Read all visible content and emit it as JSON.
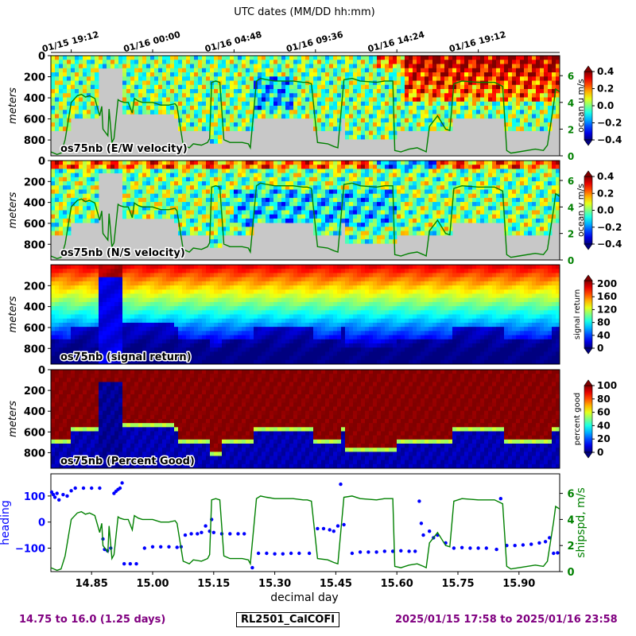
{
  "top_axis": {
    "label": "UTC dates (MM/DD hh:mm)",
    "ticks": [
      "01/15 19:12",
      "01/16 00:00",
      "01/16 04:48",
      "01/16 09:36",
      "01/16 14:24",
      "01/16 19:12"
    ],
    "tick_days": [
      14.8,
      15.0,
      15.2,
      15.4,
      15.6,
      15.8
    ]
  },
  "footer": {
    "left": "14.75 to 16.0 (1.25 days)",
    "center": "RL2501_CalCOFI",
    "right": "2025/01/15 17:58 to 2025/01/16 23:58"
  },
  "colors": {
    "purple": "#800080",
    "green": "#008000",
    "blue": "#0000ff",
    "gray_nodata": "#c8c8c8"
  },
  "chart_data": [
    {
      "type": "heatmap",
      "panel_label": "os75nb (E/W velocity)",
      "ylabel": "meters",
      "y_ticks": [
        0,
        200,
        400,
        600,
        800
      ],
      "ylim": [
        950,
        0
      ],
      "colorbar": {
        "label": "ocean u m/s",
        "ticks": [
          0.4,
          0.2,
          0.0,
          -0.2,
          -0.4
        ],
        "tick_labels": [
          "0.4",
          "0.2",
          "0.0",
          "−0.2",
          "−0.4"
        ],
        "range": [
          -0.4,
          0.4
        ],
        "colormap": "jet"
      },
      "right_axis": {
        "ticks": [
          "0",
          "2",
          "4",
          "6"
        ],
        "tick_values": [
          0,
          2,
          4,
          6
        ],
        "range": [
          0,
          7.5
        ]
      }
    },
    {
      "type": "heatmap",
      "panel_label": "os75nb (N/S velocity)",
      "ylabel": "meters",
      "y_ticks": [
        0,
        200,
        400,
        600,
        800
      ],
      "ylim": [
        950,
        0
      ],
      "colorbar": {
        "label": "ocean v m/s",
        "ticks": [
          0.4,
          0.2,
          0.0,
          -0.2,
          -0.4
        ],
        "tick_labels": [
          "0.4",
          "0.2",
          "0.0",
          "−0.2",
          "−0.4"
        ],
        "range": [
          -0.4,
          0.4
        ],
        "colormap": "jet"
      },
      "right_axis": {
        "ticks": [
          "0",
          "2",
          "4",
          "6"
        ],
        "tick_values": [
          0,
          2,
          4,
          6
        ],
        "range": [
          0,
          7.5
        ]
      }
    },
    {
      "type": "heatmap",
      "panel_label": "os75nb (signal return)",
      "ylabel": "meters",
      "y_ticks": [
        200,
        400,
        600,
        800
      ],
      "ylim": [
        950,
        0
      ],
      "colorbar": {
        "label": "signal return",
        "ticks": [
          200,
          160,
          120,
          80,
          40,
          0
        ],
        "tick_labels": [
          "200",
          "160",
          "120",
          "80",
          "40",
          "0"
        ],
        "range": [
          0,
          210
        ],
        "colormap": "jet"
      }
    },
    {
      "type": "heatmap",
      "panel_label": "os75nb (Percent Good)",
      "ylabel": "meters",
      "y_ticks": [
        0,
        200,
        400,
        600,
        800
      ],
      "ylim": [
        950,
        0
      ],
      "colorbar": {
        "label": "percent good",
        "ticks": [
          100,
          80,
          60,
          40,
          20,
          0
        ],
        "tick_labels": [
          "100",
          "80",
          "60",
          "40",
          "20",
          "0"
        ],
        "range": [
          0,
          100
        ],
        "colormap": "jet"
      }
    },
    {
      "type": "scatter",
      "xlabel": "decimal day",
      "ylabel": "heading",
      "ylabel_right": "shipspd, m/s",
      "x_ticks": [
        14.85,
        15.0,
        15.15,
        15.3,
        15.45,
        15.6,
        15.75,
        15.9
      ],
      "x_tick_labels": [
        "14.85",
        "15.00",
        "15.15",
        "15.30",
        "15.45",
        "15.60",
        "15.75",
        "15.90"
      ],
      "xlim": [
        14.75,
        16.0
      ],
      "y_ticks": [
        100,
        0,
        -100
      ],
      "y_tick_labels": [
        "100",
        "0",
        "−100"
      ],
      "ylim": [
        -190,
        185
      ],
      "right_ticks": [
        "0",
        "2",
        "4",
        "6"
      ],
      "right_tick_values": [
        0,
        2,
        4,
        6
      ],
      "right_ylim": [
        0,
        7.5
      ],
      "series": [
        {
          "color": "#0000ff",
          "points": [
            [
              14.752,
              115
            ],
            [
              14.756,
              105
            ],
            [
              14.76,
              95
            ],
            [
              14.765,
              110
            ],
            [
              14.77,
              85
            ],
            [
              14.78,
              105
            ],
            [
              14.79,
              100
            ],
            [
              14.8,
              120
            ],
            [
              14.81,
              130
            ],
            [
              14.83,
              130
            ],
            [
              14.85,
              130
            ],
            [
              14.87,
              130
            ],
            [
              14.878,
              -65
            ],
            [
              14.882,
              -105
            ],
            [
              14.889,
              -110
            ],
            [
              14.897,
              -100
            ],
            [
              14.905,
              110
            ],
            [
              14.91,
              118
            ],
            [
              14.915,
              125
            ],
            [
              14.92,
              130
            ],
            [
              14.925,
              150
            ],
            [
              14.93,
              -160
            ],
            [
              14.945,
              -160
            ],
            [
              14.96,
              -160
            ],
            [
              14.98,
              -100
            ],
            [
              15.0,
              -95
            ],
            [
              15.02,
              -95
            ],
            [
              15.04,
              -95
            ],
            [
              15.06,
              -97
            ],
            [
              15.07,
              -95
            ],
            [
              15.08,
              -50
            ],
            [
              15.095,
              -45
            ],
            [
              15.11,
              -45
            ],
            [
              15.12,
              -40
            ],
            [
              15.13,
              -15
            ],
            [
              15.14,
              -35
            ],
            [
              15.145,
              10
            ],
            [
              15.15,
              -40
            ],
            [
              15.17,
              -45
            ],
            [
              15.19,
              -45
            ],
            [
              15.21,
              -45
            ],
            [
              15.225,
              -45
            ],
            [
              15.245,
              -175
            ],
            [
              15.26,
              -120
            ],
            [
              15.28,
              -120
            ],
            [
              15.3,
              -122
            ],
            [
              15.32,
              -122
            ],
            [
              15.34,
              -120
            ],
            [
              15.36,
              -120
            ],
            [
              15.385,
              -120
            ],
            [
              15.405,
              -25
            ],
            [
              15.42,
              -25
            ],
            [
              15.435,
              -30
            ],
            [
              15.445,
              -35
            ],
            [
              15.455,
              -15
            ],
            [
              15.462,
              145
            ],
            [
              15.47,
              -10
            ],
            [
              15.49,
              -120
            ],
            [
              15.51,
              -115
            ],
            [
              15.53,
              -115
            ],
            [
              15.55,
              -115
            ],
            [
              15.57,
              -112
            ],
            [
              15.59,
              -112
            ],
            [
              15.61,
              -110
            ],
            [
              15.63,
              -112
            ],
            [
              15.645,
              -112
            ],
            [
              15.655,
              80
            ],
            [
              15.66,
              -5
            ],
            [
              15.665,
              -50
            ],
            [
              15.68,
              -35
            ],
            [
              15.69,
              -60
            ],
            [
              15.7,
              -50
            ],
            [
              15.72,
              -80
            ],
            [
              15.74,
              -100
            ],
            [
              15.76,
              -98
            ],
            [
              15.78,
              -100
            ],
            [
              15.8,
              -100
            ],
            [
              15.82,
              -100
            ],
            [
              15.845,
              -105
            ],
            [
              15.855,
              90
            ],
            [
              15.87,
              -90
            ],
            [
              15.89,
              -90
            ],
            [
              15.91,
              -88
            ],
            [
              15.93,
              -85
            ],
            [
              15.95,
              -80
            ],
            [
              15.965,
              -75
            ],
            [
              15.975,
              -60
            ],
            [
              15.985,
              -120
            ],
            [
              15.995,
              -118
            ]
          ]
        },
        {
          "color": "#008000",
          "name": "shipspd",
          "x": [
            14.75,
            14.765,
            14.775,
            14.785,
            14.8,
            14.815,
            14.825,
            14.835,
            14.845,
            14.858,
            14.87,
            14.875,
            14.878,
            14.89,
            14.893,
            14.9,
            14.905,
            14.915,
            14.92,
            14.93,
            14.94,
            14.95,
            14.955,
            14.965,
            14.975,
            14.98,
            15.0,
            15.02,
            15.04,
            15.055,
            15.06,
            15.075,
            15.09,
            15.1,
            15.12,
            15.135,
            15.14,
            15.145,
            15.155,
            15.165,
            15.175,
            15.19,
            15.2,
            15.22,
            15.235,
            15.24,
            15.255,
            15.265,
            15.28,
            15.3,
            15.32,
            15.345,
            15.37,
            15.38,
            15.39,
            15.405,
            15.43,
            15.445,
            15.455,
            15.47,
            15.49,
            15.51,
            15.55,
            15.57,
            15.59,
            15.595,
            15.61,
            15.63,
            15.65,
            15.665,
            15.672,
            15.68,
            15.7,
            15.72,
            15.73,
            15.74,
            15.76,
            15.8,
            15.84,
            15.86,
            15.87,
            15.88,
            15.9,
            15.94,
            15.96,
            15.97,
            15.985,
            15.99,
            16.0
          ],
          "values": [
            0.3,
            0.1,
            0.2,
            1.2,
            4.0,
            4.5,
            4.6,
            4.4,
            4.5,
            4.3,
            3.0,
            3.7,
            2.0,
            1.5,
            3.5,
            1.0,
            1.3,
            4.2,
            4.1,
            4.0,
            4.0,
            3.2,
            4.3,
            4.1,
            4.0,
            4.0,
            4.0,
            3.8,
            3.8,
            3.9,
            3.7,
            0.8,
            0.6,
            0.9,
            0.8,
            1.0,
            1.3,
            5.5,
            5.6,
            5.5,
            1.2,
            1.0,
            1.0,
            1.0,
            0.9,
            0.6,
            5.6,
            5.8,
            5.7,
            5.6,
            5.6,
            5.6,
            5.5,
            5.5,
            5.4,
            1.0,
            0.9,
            0.7,
            0.6,
            5.7,
            5.8,
            5.6,
            5.5,
            5.6,
            5.6,
            0.4,
            0.3,
            0.5,
            0.6,
            0.4,
            0.3,
            2.2,
            3.0,
            2.0,
            1.9,
            5.4,
            5.6,
            5.5,
            5.5,
            5.2,
            0.4,
            0.2,
            0.3,
            0.5,
            0.4,
            0.8,
            3.8,
            5.0,
            4.8
          ]
        }
      ]
    }
  ]
}
